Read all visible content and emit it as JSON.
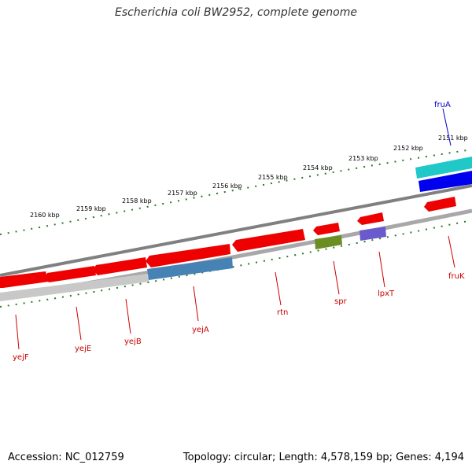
{
  "title": "Escherichia coli BW2952, complete genome",
  "accession": "Accession: NC_012759",
  "summary": "Topology: circular; Length: 4,578,159 bp; Genes: 4,194",
  "colors": {
    "backbone": "#888888",
    "forward_cds": "#ff0000",
    "reverse_cds": "#ff0000",
    "gene_label": "#cc0000",
    "fruA_label": "#0000cc",
    "tick": "#2a7a2a",
    "fruA_outer": "#20c8c8",
    "fruA_inner": "#0000ee",
    "spr_box": "#6b8e23",
    "lpxT_box": "#6a5acd",
    "yejA_box": "#4682b4",
    "gray_box": "#c8c8c8"
  },
  "ruler": {
    "upper_labels": [
      "2160 kbp",
      "2159 kbp",
      "2158 kbp",
      "2157 kbp",
      "2156 kbp",
      "2155 kbp",
      "2154 kbp",
      "2153 kbp",
      "2152 kbp",
      "2151 kbp"
    ]
  },
  "genes": [
    {
      "name": "fruA",
      "strand": "outer"
    },
    {
      "name": "fruK",
      "strand": "lower"
    },
    {
      "name": "lpxT",
      "strand": "lower"
    },
    {
      "name": "spr",
      "strand": "lower"
    },
    {
      "name": "rtn",
      "strand": "lower"
    },
    {
      "name": "yejA",
      "strand": "lower"
    },
    {
      "name": "yejB",
      "strand": "lower"
    },
    {
      "name": "yejE",
      "strand": "lower"
    },
    {
      "name": "yejF",
      "strand": "lower"
    }
  ]
}
